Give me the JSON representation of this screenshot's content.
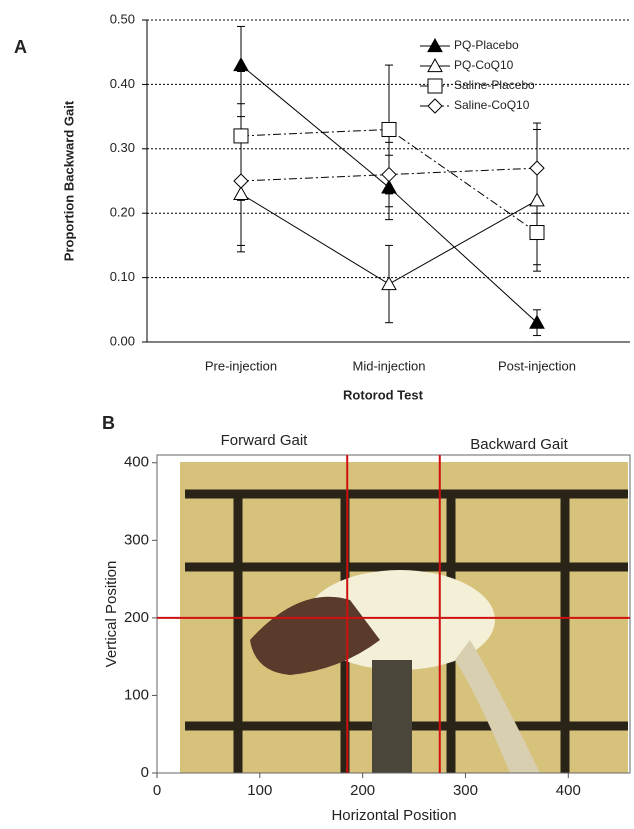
{
  "chart_data": [
    {
      "type": "line",
      "panel": "A",
      "x_label": "Rotorod Test",
      "y_label": "Proportion Backward Gait",
      "categories": [
        "Pre-injection",
        "Mid-injection",
        "Post-injection"
      ],
      "ylim": [
        0,
        0.5
      ],
      "yticks": [
        {
          "value": 0,
          "label": "0.00"
        },
        {
          "value": 0.1,
          "label": "0.10"
        },
        {
          "value": 0.2,
          "label": "0.20"
        },
        {
          "value": 0.3,
          "label": "0.30"
        },
        {
          "value": 0.4,
          "label": "0.40"
        },
        {
          "value": 0.5,
          "label": "0.50"
        }
      ],
      "grid": true,
      "legend": "upper right",
      "series": [
        {
          "name": "PQ-Placebo",
          "color": "#000000",
          "marker": "triangle-filled",
          "dash": "solid",
          "values": [
            0.43,
            0.24,
            0.03
          ],
          "errors": [
            0.06,
            0.05,
            0.02
          ]
        },
        {
          "name": "PQ-CoQ10",
          "color": "#000000",
          "marker": "triangle-open",
          "dash": "solid",
          "values": [
            0.23,
            0.09,
            0.22
          ],
          "errors": [
            0.09,
            0.06,
            0.11
          ]
        },
        {
          "name": "Saline-Placebo",
          "color": "#000000",
          "marker": "square-open",
          "dash": "dashdot",
          "values": [
            0.32,
            0.33,
            0.17
          ],
          "errors": [
            0.1,
            0.1,
            0.05
          ]
        },
        {
          "name": "Saline-CoQ10",
          "color": "#000000",
          "marker": "diamond-open",
          "dash": "dashdot",
          "values": [
            0.25,
            0.26,
            0.27
          ],
          "errors": [
            0.1,
            0.05,
            0.07
          ]
        }
      ]
    },
    {
      "type": "image",
      "panel": "B",
      "x_label": "Horizontal Position",
      "y_label": "Vertical Position",
      "xlim": [
        0,
        460
      ],
      "ylim": [
        0,
        410
      ],
      "xticks": [
        0,
        100,
        200,
        300,
        400
      ],
      "yticks": [
        0,
        100,
        200,
        300,
        400
      ],
      "region_labels": [
        "Forward Gait",
        "Backward Gait"
      ],
      "line_color": "#d01010",
      "vlines": [
        185,
        275
      ],
      "hlines": [
        200
      ]
    }
  ]
}
